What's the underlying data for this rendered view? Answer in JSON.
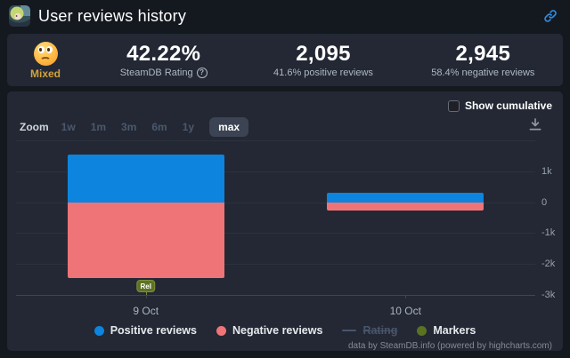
{
  "header": {
    "title": "User reviews history"
  },
  "stats": {
    "rating_word": "Mixed",
    "rating_color": "#d2a33a",
    "score": "42.22%",
    "score_sub": "SteamDB Rating",
    "positive_count": "2,095",
    "positive_sub": "41.6% positive reviews",
    "negative_count": "2,945",
    "negative_sub": "58.4% negative reviews"
  },
  "controls": {
    "cumulative_label": "Show cumulative",
    "zoom_label": "Zoom",
    "ranges": [
      "1w",
      "1m",
      "3m",
      "6m",
      "1y",
      "max"
    ],
    "selected_range": "max"
  },
  "chart_data": {
    "type": "bar",
    "stacking": "normal",
    "title": "",
    "categories": [
      "9 Oct",
      "10 Oct"
    ],
    "series": [
      {
        "name": "Positive reviews",
        "color": "#0d84de",
        "values": [
          1550,
          310
        ]
      },
      {
        "name": "Negative reviews",
        "color": "#ee7477",
        "values": [
          -2450,
          -260
        ]
      }
    ],
    "ylim": [
      -3000,
      2000
    ],
    "yticks": [
      {
        "v": 2000,
        "label": ""
      },
      {
        "v": 1000,
        "label": "1k"
      },
      {
        "v": 0,
        "label": "0"
      },
      {
        "v": -1000,
        "label": "-1k"
      },
      {
        "v": -2000,
        "label": "-2k"
      },
      {
        "v": -3000,
        "label": "-3k"
      }
    ],
    "grid": "horizontal",
    "legend_position": "bottom",
    "markers": [
      {
        "label": "Rel",
        "category_index": 0
      }
    ],
    "legend": [
      {
        "label": "Positive reviews",
        "color": "#0d84de",
        "shape": "dot",
        "disabled": false
      },
      {
        "label": "Negative reviews",
        "color": "#ee7477",
        "shape": "dot",
        "disabled": false
      },
      {
        "label": "Rating",
        "color": "#49556a",
        "shape": "line",
        "disabled": true
      },
      {
        "label": "Markers",
        "color": "#5a7222",
        "shape": "dot",
        "disabled": false
      }
    ],
    "credits": "data by SteamDB.info (powered by highcharts.com)"
  }
}
